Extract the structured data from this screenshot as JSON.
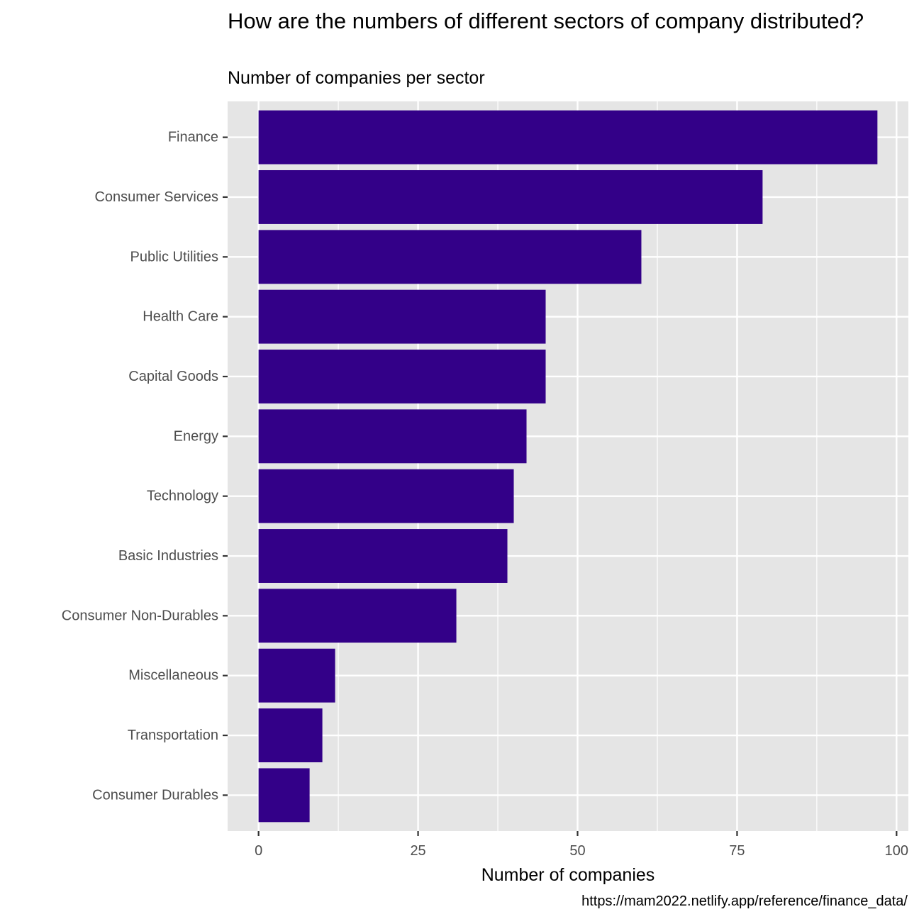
{
  "chart_data": {
    "type": "bar",
    "orientation": "horizontal",
    "title": "How are the numbers of different sectors of company distributed?",
    "subtitle": "Number of companies per sector",
    "xlabel": "Number of companies",
    "ylabel": "",
    "caption": "https://mam2022.netlify.app/reference/finance_data/",
    "categories": [
      "Finance",
      "Consumer Services",
      "Public Utilities",
      "Health Care",
      "Capital Goods",
      "Energy",
      "Technology",
      "Basic Industries",
      "Consumer Non-Durables",
      "Miscellaneous",
      "Transportation",
      "Consumer Durables"
    ],
    "values": [
      97,
      79,
      60,
      45,
      45,
      42,
      40,
      39,
      31,
      12,
      10,
      8
    ],
    "xlim": [
      -4.85,
      101.85
    ],
    "xticks": [
      0,
      25,
      50,
      75,
      100
    ],
    "grid": true,
    "bar_color": "#330088",
    "panel_color": "#E5E5E5",
    "grid_color": "#FFFFFF"
  }
}
